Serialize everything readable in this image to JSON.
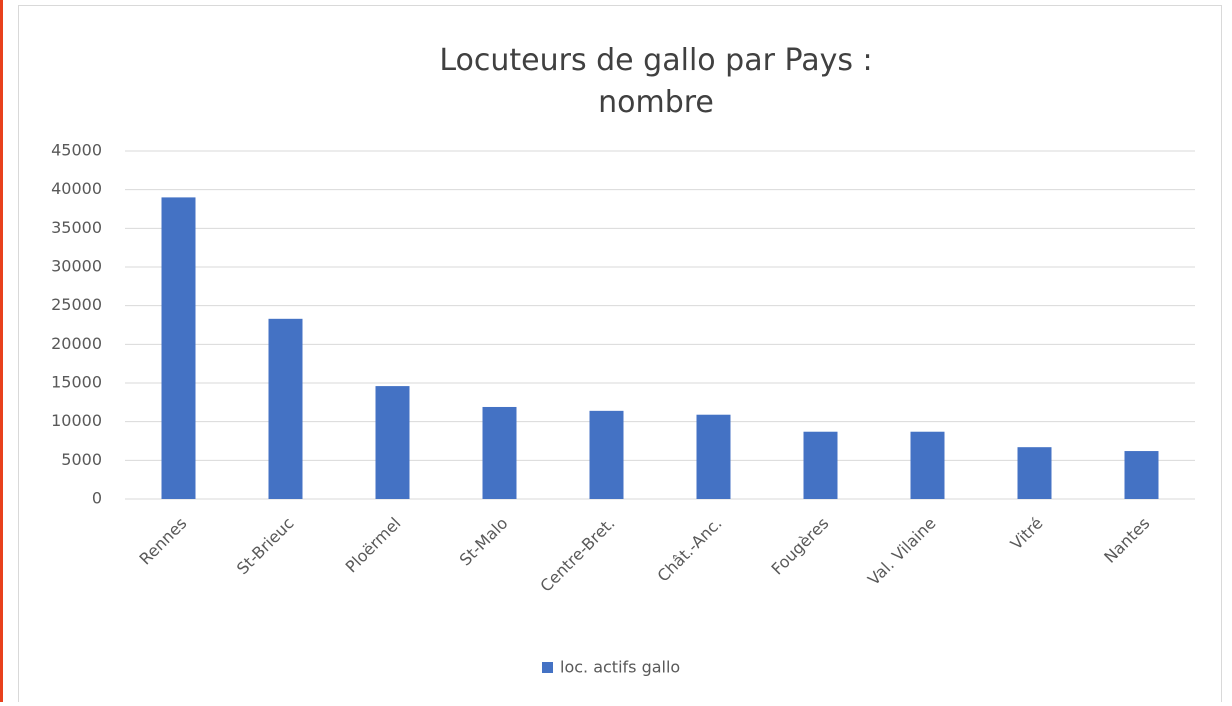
{
  "chart_data": {
    "type": "bar",
    "title": [
      "Locuteurs de gallo par Pays :",
      "nombre"
    ],
    "categories": [
      "Rennes",
      "St-Brieuc",
      "Ploërmel",
      "St-Malo",
      "Centre-Bret.",
      "Chât.-Anc.",
      "Fougères",
      "Val. Vilaine",
      "Vitré",
      "Nantes"
    ],
    "series": [
      {
        "name": "loc. actifs gallo",
        "color": "#4472c4",
        "values": [
          39000,
          23300,
          14600,
          11900,
          11400,
          10900,
          8700,
          8700,
          6700,
          6200
        ]
      }
    ],
    "ylim": [
      0,
      45000
    ],
    "yticks": [
      0,
      5000,
      10000,
      15000,
      20000,
      25000,
      30000,
      35000,
      40000,
      45000
    ],
    "grid": true,
    "legend": "bottom"
  }
}
